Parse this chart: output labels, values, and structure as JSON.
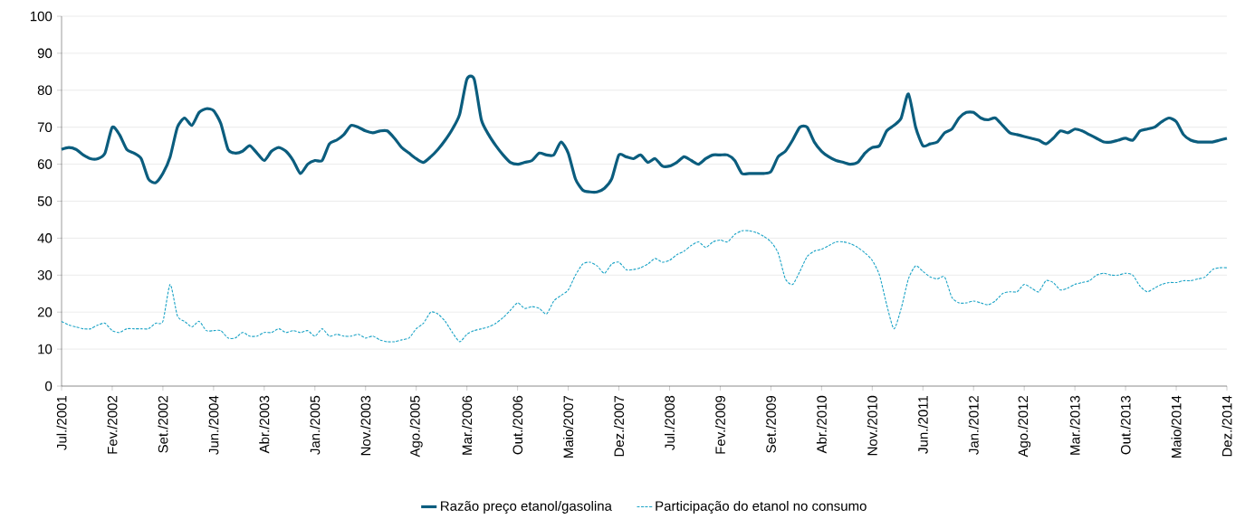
{
  "chart_data": {
    "type": "line",
    "categories": [
      "Jul./2001",
      null,
      null,
      null,
      null,
      null,
      null,
      "Fev./2002",
      null,
      null,
      null,
      null,
      null,
      null,
      "Set./2002",
      null,
      null,
      null,
      null,
      null,
      null,
      "Jun./2004",
      null,
      null,
      null,
      null,
      null,
      null,
      "Abr./2003",
      null,
      null,
      null,
      null,
      null,
      null,
      "Jan./2005",
      null,
      null,
      null,
      null,
      null,
      null,
      "Nov./2003",
      null,
      null,
      null,
      null,
      null,
      null,
      "Ago./2005",
      null,
      null,
      null,
      null,
      null,
      null,
      "Mar./2006",
      null,
      null,
      null,
      null,
      null,
      null,
      "Out./2006",
      null,
      null,
      null,
      null,
      null,
      null,
      "Maio/2007",
      null,
      null,
      null,
      null,
      null,
      null,
      "Dez./2007",
      null,
      null,
      null,
      null,
      null,
      null,
      "Jul./2008",
      null,
      null,
      null,
      null,
      null,
      null,
      "Fev./2009",
      null,
      null,
      null,
      null,
      null,
      null,
      "Set./2009",
      null,
      null,
      null,
      null,
      null,
      null,
      "Abr./2010",
      null,
      null,
      null,
      null,
      null,
      null,
      "Nov./2010",
      null,
      null,
      null,
      null,
      null,
      null,
      "Jun./2011",
      null,
      null,
      null,
      null,
      null,
      null,
      "Jan./2012",
      null,
      null,
      null,
      null,
      null,
      null,
      "Ago./2012",
      null,
      null,
      null,
      null,
      null,
      null,
      "Mar./2013",
      null,
      null,
      null,
      null,
      null,
      null,
      "Out./2013",
      null,
      null,
      null,
      null,
      null,
      null,
      "Maio/2014",
      null,
      null,
      null,
      null,
      null,
      null,
      "Dez./2014"
    ],
    "series": [
      {
        "name": "Razão preço etanol/gasolina",
        "color": "#0b5d7e",
        "line_style": "solid",
        "values": [
          64,
          64.5,
          64,
          62.5,
          61.5,
          61.5,
          63,
          70,
          68,
          64,
          63,
          61.5,
          56,
          55,
          57.5,
          62,
          70,
          72.5,
          70.5,
          74,
          75,
          74.5,
          71,
          64,
          63,
          63.5,
          65,
          63,
          61,
          63.5,
          64.5,
          63.5,
          61,
          57.5,
          60,
          61,
          61,
          65.5,
          66.5,
          68,
          70.5,
          70,
          69,
          68.5,
          69,
          69,
          67,
          64.5,
          63,
          61.5,
          60.5,
          62,
          64,
          66.5,
          69.5,
          73.5,
          83,
          83,
          72,
          68,
          65,
          62.5,
          60.5,
          60,
          60.5,
          61,
          63,
          62.5,
          62.5,
          66,
          63,
          56,
          53,
          52.5,
          52.5,
          53.5,
          56,
          62.5,
          62,
          61.5,
          62.5,
          60.5,
          61.5,
          59.5,
          59.5,
          60.5,
          62,
          61,
          60,
          61.5,
          62.5,
          62.5,
          62.5,
          61,
          57.5,
          57.5,
          57.5,
          57.5,
          58,
          62,
          63.5,
          66.5,
          70,
          70,
          66,
          63.5,
          62,
          61,
          60.5,
          60,
          60.5,
          63,
          64.5,
          65,
          69,
          70.5,
          72.5,
          79,
          70,
          65,
          65.5,
          66,
          68.5,
          69.5,
          72.5,
          74,
          74,
          72.5,
          72,
          72.5,
          70.5,
          68.5,
          68,
          67.5,
          67,
          66.5,
          65.5,
          67,
          69,
          68.5,
          69.5,
          69,
          68,
          67,
          66,
          66,
          66.5,
          67,
          66.5,
          69,
          69.5,
          70,
          71.5,
          72.5,
          71.5,
          68,
          66.5,
          66,
          66,
          66,
          66.5,
          67
        ]
      },
      {
        "name": "Participação do etanol no consumo",
        "color": "#1ba3c6",
        "line_style": "dashed",
        "values": [
          17.5,
          16.5,
          16,
          15.5,
          15.5,
          16.5,
          17,
          15,
          14.5,
          15.5,
          15.5,
          15.5,
          15.5,
          17,
          17.5,
          27.5,
          19,
          17.5,
          16,
          17.5,
          15,
          15,
          15,
          13,
          13,
          14.5,
          13.5,
          13.5,
          14.5,
          14.5,
          15.5,
          14.5,
          15,
          14.5,
          15,
          13.5,
          15.5,
          13.5,
          14,
          13.5,
          13.5,
          14,
          13,
          13.5,
          12.5,
          12,
          12,
          12.5,
          13,
          15.5,
          17,
          20,
          19.5,
          17.5,
          14.5,
          12,
          14,
          15,
          15.5,
          16,
          17,
          18.5,
          20.5,
          22.5,
          21,
          21.5,
          21,
          19.5,
          23,
          24.5,
          26,
          30,
          33,
          33.5,
          32.5,
          30.5,
          33,
          33.5,
          31.5,
          31.5,
          32,
          33,
          34.5,
          33.5,
          34,
          35.5,
          36.5,
          38,
          39,
          37.5,
          39,
          39.5,
          39,
          41,
          42,
          42,
          41.5,
          40.5,
          39,
          36,
          29,
          27.5,
          31,
          35,
          36.5,
          37,
          38,
          39,
          39,
          38.5,
          37.5,
          36,
          34,
          30,
          22,
          15.5,
          21,
          29,
          32.5,
          31,
          29.5,
          29,
          29.5,
          24,
          22.5,
          22.5,
          23,
          22.5,
          22,
          23,
          25,
          25.5,
          25.5,
          27.5,
          26.5,
          25.5,
          28.5,
          28,
          26,
          26.5,
          27.5,
          28,
          28.5,
          30,
          30.5,
          30,
          30,
          30.5,
          30,
          27,
          25.5,
          26.5,
          27.5,
          28,
          28,
          28.5,
          28.5,
          29,
          29.5,
          31.5,
          32,
          32
        ]
      }
    ],
    "ylim": [
      0,
      100
    ],
    "yticks": [
      0,
      10,
      20,
      30,
      40,
      50,
      60,
      70,
      80,
      90,
      100
    ],
    "grid": "y",
    "legend": "bottom",
    "marker": "none"
  }
}
